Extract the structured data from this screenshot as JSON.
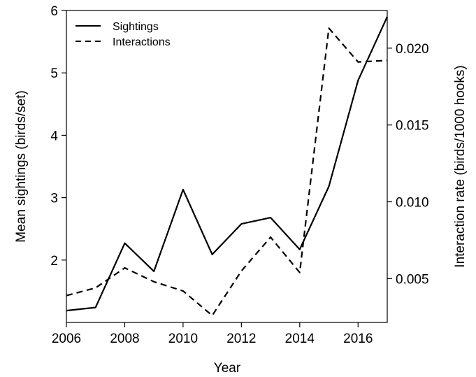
{
  "chart_data": {
    "type": "line",
    "title": "",
    "xlabel": "Year",
    "ylabel_left": "Mean sightings (birds/set)",
    "ylabel_right": "Interaction rate (birds/1000 hooks)",
    "x": [
      2006,
      2007,
      2008,
      2009,
      2010,
      2011,
      2012,
      2013,
      2014,
      2015,
      2016,
      2017
    ],
    "xlim": [
      2006,
      2017
    ],
    "ylim_left": [
      1.0,
      6.0
    ],
    "ylim_right": [
      0.00215,
      0.02245
    ],
    "x_ticks": [
      "2006",
      "2008",
      "2010",
      "2012",
      "2014",
      "2016"
    ],
    "y_left_ticks": [
      "2",
      "3",
      "4",
      "5",
      "6"
    ],
    "y_right_ticks": [
      "0.005",
      "0.010",
      "0.015",
      "0.020"
    ],
    "legend_position": "top-left",
    "grid": false,
    "series": [
      {
        "name": "Sightings",
        "axis": "left",
        "style": "solid",
        "color": "#000000",
        "values": [
          1.19,
          1.24,
          2.27,
          1.82,
          3.13,
          2.09,
          2.58,
          2.68,
          2.17,
          3.18,
          4.88,
          5.9
        ]
      },
      {
        "name": "Interactions",
        "axis": "right",
        "style": "dashed",
        "color": "#000000",
        "values": [
          0.0039,
          0.0044,
          0.0057,
          0.0048,
          0.0042,
          0.0026,
          0.0055,
          0.0077,
          0.0054,
          0.0213,
          0.0191,
          0.0192
        ]
      }
    ]
  }
}
